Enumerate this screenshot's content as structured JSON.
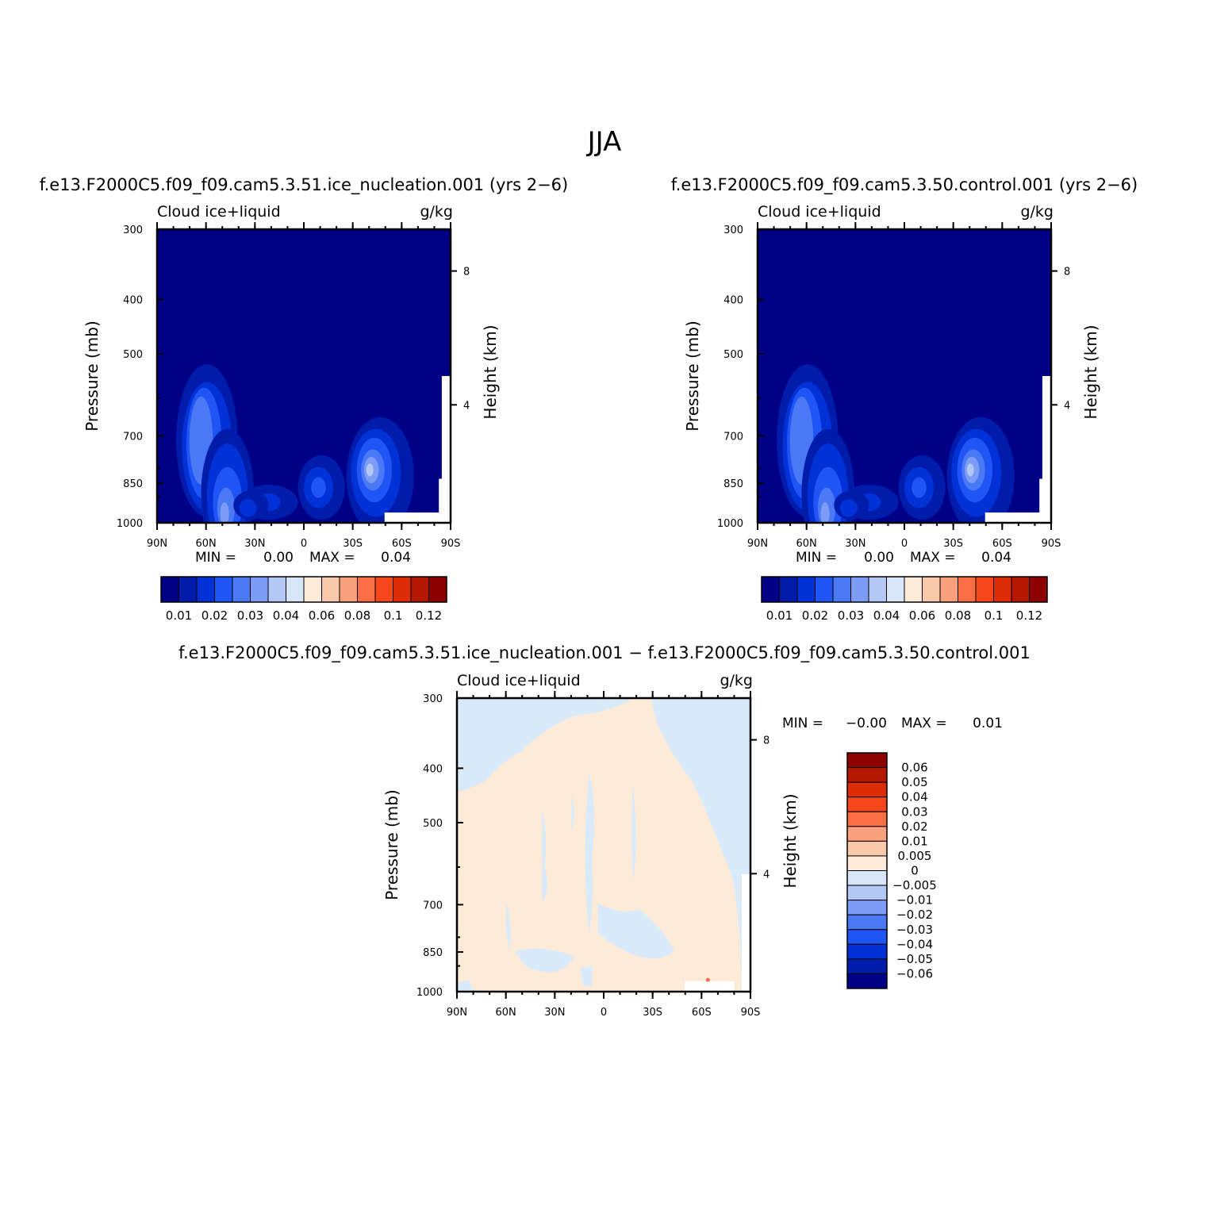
{
  "figure": {
    "title": "JJA"
  },
  "colors": {
    "blue_scale": [
      "#000087",
      "#001cab",
      "#0032d7",
      "#1f55f5",
      "#4b78f5",
      "#7d9cf5",
      "#b4c8f5",
      "#d8e6fa"
    ],
    "red_scale": [
      "#fdebd8",
      "#fac8aa",
      "#faa07d",
      "#fa6e46",
      "#f5461c",
      "#dc2d06",
      "#b41900",
      "#8c0000"
    ],
    "diff_pos": "#fdebd8",
    "diff_neg": "#d9eafb",
    "missing": "#ffffff"
  },
  "chart_data": [
    {
      "type": "heatmap",
      "title": "f.e13.F2000C5.f09_f09.cam5.3.51.ice_nucleation.001 (yrs 2−6)",
      "subtitle_left": "Cloud ice+liquid",
      "subtitle_right": "g/kg",
      "xlabel": "",
      "ylabel": "Pressure (mb)",
      "ylabel_right": "Height (km)",
      "x_ticks": [
        "90N",
        "60N",
        "30N",
        "0",
        "30S",
        "60S",
        "90S"
      ],
      "x_range": [
        90,
        -90
      ],
      "y_ticks": [
        300,
        400,
        500,
        700,
        850,
        1000
      ],
      "y_range": [
        300,
        1000
      ],
      "y_scale": "log",
      "y_right_ticks": [
        "8",
        "4"
      ],
      "stats": {
        "min_label": "MIN =",
        "min": "0.00",
        "max_label": "MAX =",
        "max": "0.04"
      },
      "colorbar": {
        "orientation": "horizontal",
        "labels": [
          "0.01",
          "0.02",
          "0.03",
          "0.04",
          "0.06",
          "0.08",
          "0.1",
          "0.12"
        ]
      },
      "features": [
        {
          "lat": 62,
          "p": 780,
          "value": 0.03
        },
        {
          "lat": 48,
          "p": 950,
          "value": 0.035
        },
        {
          "lat": -48,
          "p": 860,
          "value": 0.04
        },
        {
          "lat": -8,
          "p": 920,
          "value": 0.02
        },
        {
          "lat": 30,
          "p": 930,
          "value": 0.015
        }
      ]
    },
    {
      "type": "heatmap",
      "title": "f.e13.F2000C5.f09_f09.cam5.3.50.control.001 (yrs 2−6)",
      "subtitle_left": "Cloud ice+liquid",
      "subtitle_right": "g/kg",
      "xlabel": "",
      "ylabel": "Pressure (mb)",
      "ylabel_right": "Height (km)",
      "x_ticks": [
        "90N",
        "60N",
        "30N",
        "0",
        "30S",
        "60S",
        "90S"
      ],
      "x_range": [
        90,
        -90
      ],
      "y_ticks": [
        300,
        400,
        500,
        700,
        850,
        1000
      ],
      "y_range": [
        300,
        1000
      ],
      "y_scale": "log",
      "y_right_ticks": [
        "8",
        "4"
      ],
      "stats": {
        "min_label": "MIN =",
        "min": "0.00",
        "max_label": "MAX =",
        "max": "0.04"
      },
      "colorbar": {
        "orientation": "horizontal",
        "labels": [
          "0.01",
          "0.02",
          "0.03",
          "0.04",
          "0.06",
          "0.08",
          "0.1",
          "0.12"
        ]
      },
      "features": [
        {
          "lat": 62,
          "p": 780,
          "value": 0.03
        },
        {
          "lat": 48,
          "p": 950,
          "value": 0.035
        },
        {
          "lat": -48,
          "p": 860,
          "value": 0.04
        },
        {
          "lat": -8,
          "p": 920,
          "value": 0.02
        },
        {
          "lat": 30,
          "p": 930,
          "value": 0.015
        }
      ]
    },
    {
      "type": "heatmap",
      "title": "f.e13.F2000C5.f09_f09.cam5.3.51.ice_nucleation.001 − f.e13.F2000C5.f09_f09.cam5.3.50.control.001",
      "subtitle_left": "Cloud ice+liquid",
      "subtitle_right": "g/kg",
      "xlabel": "",
      "ylabel": "Pressure (mb)",
      "ylabel_right": "Height (km)",
      "x_ticks": [
        "90N",
        "60N",
        "30N",
        "0",
        "30S",
        "60S",
        "90S"
      ],
      "x_range": [
        90,
        -90
      ],
      "y_ticks": [
        300,
        400,
        500,
        700,
        850,
        1000
      ],
      "y_range": [
        300,
        1000
      ],
      "y_scale": "log",
      "y_right_ticks": [
        "8",
        "4"
      ],
      "stats": {
        "min_label": "MIN =",
        "min": "−0.00",
        "max_label": "MAX =",
        "max": "0.01"
      },
      "colorbar": {
        "orientation": "vertical",
        "labels": [
          "0.06",
          "0.05",
          "0.04",
          "0.03",
          "0.02",
          "0.01",
          "0.005",
          "0",
          "−0.005",
          "−0.01",
          "−0.02",
          "−0.03",
          "−0.04",
          "−0.05",
          "−0.06"
        ]
      },
      "features": [
        {
          "region": "upper troposphere, 90N-75N",
          "sign": "negative"
        },
        {
          "region": "upper troposphere, 0-90S",
          "sign": "negative"
        },
        {
          "region": "mid-lower troposphere, 90N-30S",
          "sign": "positive"
        }
      ]
    }
  ]
}
